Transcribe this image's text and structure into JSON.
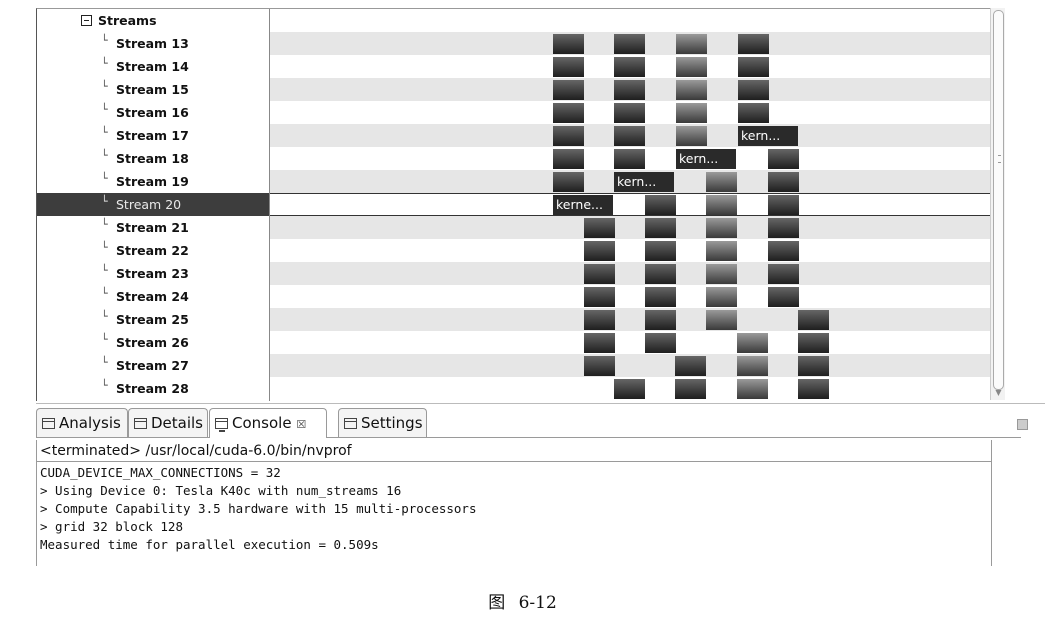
{
  "timeline": {
    "group_label": "Streams",
    "streams": [
      "Stream 13",
      "Stream 14",
      "Stream 15",
      "Stream 16",
      "Stream 17",
      "Stream 18",
      "Stream 19",
      "Stream 20",
      "Stream 21",
      "Stream 22",
      "Stream 23",
      "Stream 24",
      "Stream 25",
      "Stream 26",
      "Stream 27",
      "Stream 28"
    ],
    "selected_stream": "Stream 20",
    "kernel_labels": {
      "stream_17": "kern...",
      "stream_18": "kern...",
      "stream_19": "kern...",
      "stream_20": "kerne..."
    }
  },
  "tabs": [
    {
      "label": "Analysis",
      "icon": "analysis-icon"
    },
    {
      "label": "Details",
      "icon": "details-icon"
    },
    {
      "label": "Console",
      "icon": "console-icon",
      "close": "☒"
    },
    {
      "label": "Settings",
      "icon": "settings-icon"
    }
  ],
  "console": {
    "status": "<terminated> /usr/local/cuda-6.0/bin/nvprof",
    "lines": [
      "CUDA_DEVICE_MAX_CONNECTIONS = 32",
      "> Using Device 0: Tesla K40c with num_streams 16",
      "> Compute Capability 3.5 hardware with 15 multi-processors",
      "> grid 32 block 128",
      "Measured time for parallel execution = 0.509s"
    ]
  },
  "caption": "图 6-12"
}
